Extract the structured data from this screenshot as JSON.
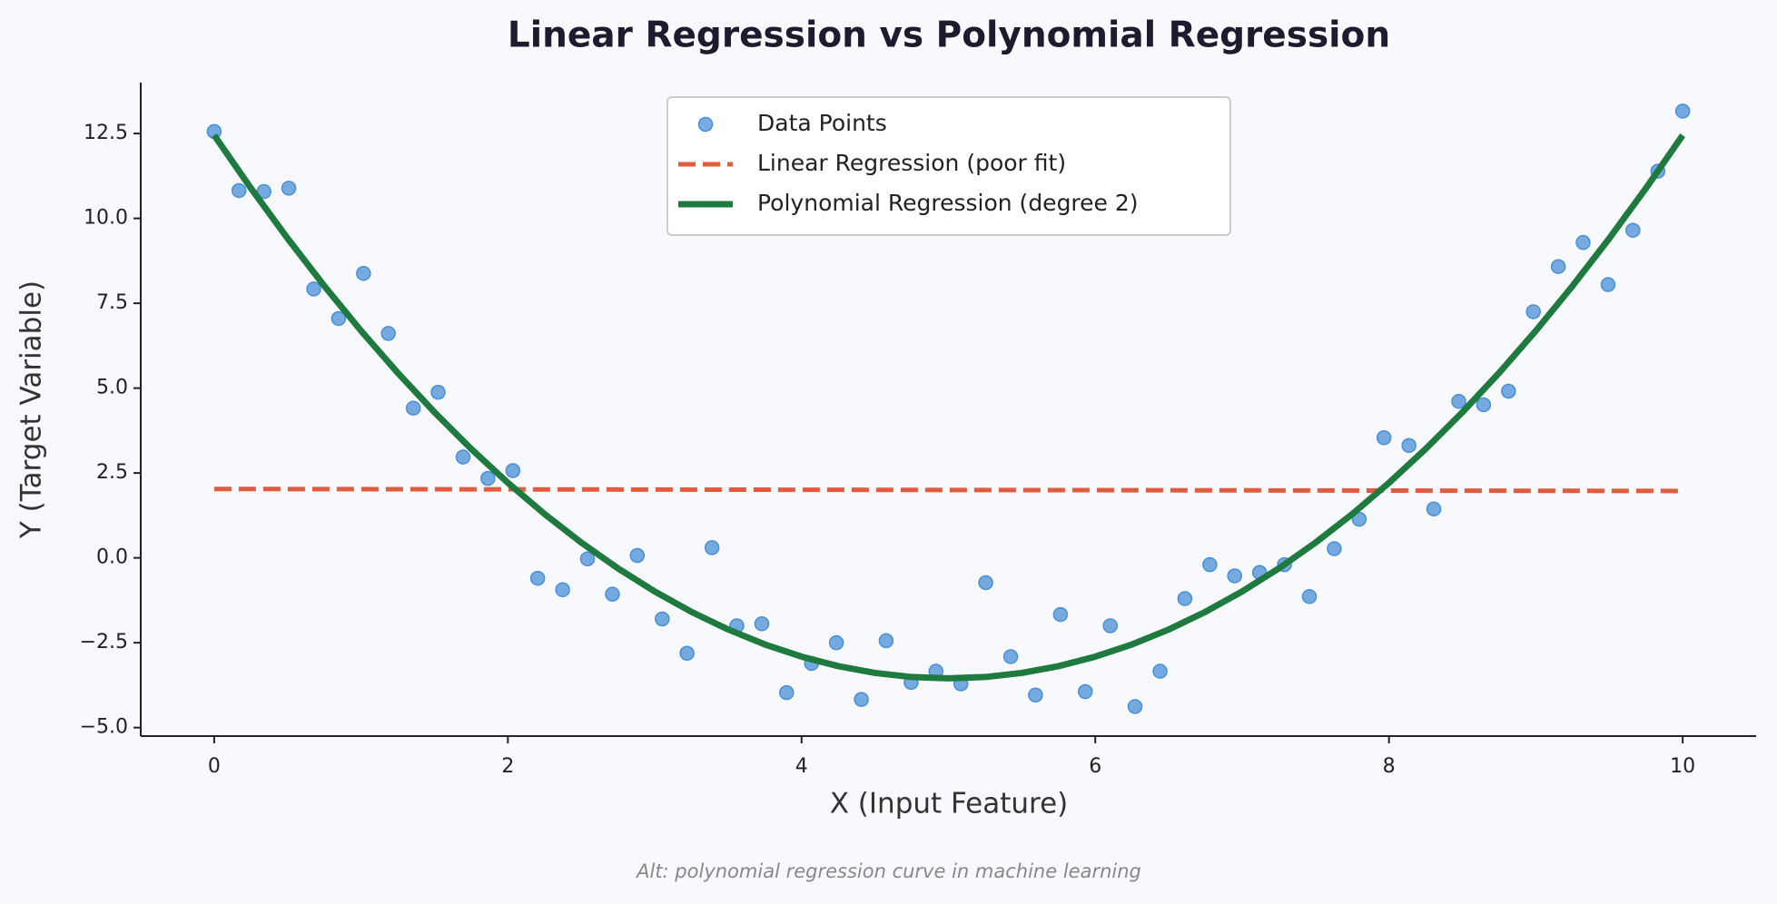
{
  "chart_data": {
    "type": "scatter",
    "title": "Linear Regression vs Polynomial Regression",
    "x_label": "X (Input Feature)",
    "y_label": "Y (Target Variable)",
    "caption": "Alt: polynomial regression curve in machine learning",
    "xlim": [
      -0.5,
      10.5
    ],
    "ylim": [
      -5.25,
      14.0
    ],
    "xticks": [
      0,
      2,
      4,
      6,
      8,
      10
    ],
    "yticks": [
      {
        "value": -5.0,
        "label": "−5.0"
      },
      {
        "value": -2.5,
        "label": "−2.5"
      },
      {
        "value": 0.0,
        "label": "0.0"
      },
      {
        "value": 2.5,
        "label": "2.5"
      },
      {
        "value": 5.0,
        "label": "5.0"
      },
      {
        "value": 7.5,
        "label": "7.5"
      },
      {
        "value": 10.0,
        "label": "10.0"
      },
      {
        "value": 12.5,
        "label": "12.5"
      }
    ],
    "legend": "upper center",
    "series": [
      {
        "name": "Data Points",
        "type": "scatter",
        "color": "#4a8fd8",
        "x": [
          0,
          0.169,
          0.339,
          0.508,
          0.678,
          0.847,
          1.017,
          1.186,
          1.356,
          1.525,
          1.695,
          1.864,
          2.034,
          2.203,
          2.373,
          2.542,
          2.712,
          2.881,
          3.051,
          3.22,
          3.39,
          3.559,
          3.729,
          3.898,
          4.068,
          4.237,
          4.407,
          4.576,
          4.746,
          4.915,
          5.085,
          5.254,
          5.424,
          5.593,
          5.763,
          5.932,
          6.102,
          6.271,
          6.441,
          6.61,
          6.78,
          6.949,
          7.119,
          7.288,
          7.458,
          7.627,
          7.797,
          7.966,
          8.136,
          8.305,
          8.475,
          8.644,
          8.814,
          8.983,
          9.153,
          9.322,
          9.492,
          9.661,
          9.831,
          10
        ],
        "values": [
          12.56,
          10.82,
          10.79,
          10.89,
          7.92,
          7.05,
          8.38,
          6.61,
          4.41,
          4.88,
          2.97,
          2.34,
          2.57,
          -0.6,
          -0.94,
          -0.03,
          -1.07,
          0.07,
          -1.8,
          -2.81,
          0.3,
          -2.0,
          -1.94,
          -3.97,
          -3.11,
          -2.5,
          -4.17,
          -2.44,
          -3.67,
          -3.34,
          -3.71,
          -0.73,
          -2.91,
          -4.04,
          -1.67,
          -3.94,
          -2.0,
          -4.38,
          -3.34,
          -1.2,
          -0.2,
          -0.53,
          -0.43,
          -0.2,
          -1.14,
          0.27,
          1.14,
          3.54,
          3.31,
          1.44,
          4.61,
          4.51,
          4.91,
          7.25,
          8.58,
          9.29,
          8.05,
          9.65,
          11.39,
          13.16
        ]
      },
      {
        "name": "Linear Regression (poor fit)",
        "type": "line",
        "dash": true,
        "color": "#e05c3e",
        "x": [
          0,
          10
        ],
        "values": [
          2.03,
          1.97
        ]
      },
      {
        "name": "Polynomial Regression (degree 2)",
        "type": "line",
        "dash": false,
        "color": "#1e7a3e",
        "x": [
          0,
          0.25,
          0.5,
          0.75,
          1,
          1.25,
          1.5,
          1.75,
          2,
          2.25,
          2.5,
          2.75,
          3,
          3.25,
          3.5,
          3.75,
          4,
          4.25,
          4.5,
          4.75,
          5,
          5.25,
          5.5,
          5.75,
          6,
          6.25,
          6.5,
          6.75,
          7,
          7.25,
          7.5,
          7.75,
          8,
          8.25,
          8.5,
          8.75,
          9,
          9.25,
          9.5,
          9.75,
          10
        ],
        "values": [
          12.45,
          10.89,
          9.41,
          8.01,
          6.69,
          5.45,
          4.29,
          3.21,
          2.21,
          1.29,
          0.45,
          -0.31,
          -0.99,
          -1.59,
          -2.11,
          -2.55,
          -2.91,
          -3.19,
          -3.39,
          -3.51,
          -3.55,
          -3.51,
          -3.39,
          -3.19,
          -2.91,
          -2.55,
          -2.11,
          -1.59,
          -0.99,
          -0.31,
          0.45,
          1.29,
          2.21,
          3.21,
          4.29,
          5.45,
          6.69,
          8.01,
          9.41,
          10.89,
          12.45
        ]
      }
    ]
  }
}
